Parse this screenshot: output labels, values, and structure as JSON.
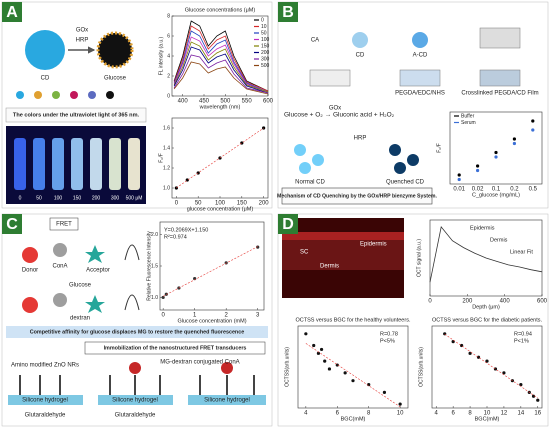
{
  "panels": {
    "A": {
      "label": "A",
      "caption": "The colors under the ultraviolet light of 365 nm.",
      "schematic": [
        "GOx",
        "HRP",
        "Glucose",
        "CD"
      ],
      "vials": [
        "0",
        "50",
        "100",
        "150",
        "200",
        "300",
        "500 μM"
      ]
    },
    "B": {
      "label": "B",
      "steps": [
        "CA",
        "CD",
        "A-CD",
        "PEGDA/EDC/NHS",
        "Crosslinked PEGDA/CD Film"
      ],
      "reaction": "Glucose + O₂ → Gluconic acid + H₂O₂",
      "enzyme1": "GOx",
      "enzyme2": "HRP",
      "normal": "Normal CD",
      "quenched": "Quenched CD",
      "caption": "Mechanism of CD Quenching by the GOx/HRP bienzyme System."
    },
    "C": {
      "label": "C",
      "fret": "FRET",
      "parts": [
        "Donor",
        "ConA",
        "Acceptor",
        "Glucose",
        "dextran"
      ],
      "band1": "Competitive affinity for glucose displaces MG to restore the quenched fluorescence",
      "band2": "Immobilization of the nanostructured FRET transducers",
      "bottom": [
        "Amino modified ZnO NRs",
        "Silicone hydrogel",
        "Silicone hydrogel",
        "Silicone hydrogel",
        "Glutaraldehyde",
        "MG-dextran conjugated ConA",
        "Glutaraldehyde"
      ]
    },
    "D": {
      "label": "D",
      "image": [
        "SC",
        "Epidermis",
        "Dermis"
      ]
    }
  },
  "chart_data": [
    {
      "type": "line",
      "title": "Glucose concentrations (μM)",
      "xlabel": "wavelength (nm)",
      "ylabel": "FL intensity (a.u.)",
      "x": [
        380,
        400,
        420,
        440,
        460,
        480,
        500,
        520,
        550,
        600
      ],
      "xlim": [
        375,
        600
      ],
      "xticks": [
        400,
        450,
        500,
        550,
        600
      ],
      "ylim": [
        0,
        8
      ],
      "yticks": [
        0,
        2,
        4,
        6,
        8
      ],
      "series": [
        {
          "name": "0",
          "color": "#000000",
          "values": [
            1.5,
            4,
            7.5,
            7,
            5,
            6,
            6.5,
            4,
            1.5,
            0.5
          ]
        },
        {
          "name": "10",
          "color": "#d62728",
          "values": [
            1.4,
            3.7,
            7.0,
            6.5,
            4.7,
            5.6,
            6.0,
            3.7,
            1.4,
            0.5
          ]
        },
        {
          "name": "50",
          "color": "#1f3fbf",
          "values": [
            1.3,
            3.4,
            6.5,
            6.0,
            4.3,
            5.2,
            5.6,
            3.4,
            1.3,
            0.4
          ]
        },
        {
          "name": "100",
          "color": "#c02bc0",
          "values": [
            1.2,
            3.2,
            5.9,
            5.5,
            4.0,
            4.7,
            5.1,
            3.2,
            1.2,
            0.4
          ]
        },
        {
          "name": "150",
          "color": "#808000",
          "values": [
            1.1,
            2.9,
            5.4,
            5.0,
            3.6,
            4.3,
            4.7,
            2.9,
            1.1,
            0.4
          ]
        },
        {
          "name": "200",
          "color": "#000080",
          "values": [
            1.0,
            2.6,
            4.9,
            4.6,
            3.3,
            3.9,
            4.2,
            2.6,
            1.0,
            0.3
          ]
        },
        {
          "name": "300",
          "color": "#7a1fa2",
          "values": [
            0.8,
            2.2,
            4.1,
            3.9,
            2.8,
            3.3,
            3.6,
            2.2,
            0.8,
            0.3
          ]
        },
        {
          "name": "500",
          "color": "#8b4513",
          "values": [
            0.7,
            1.8,
            3.4,
            3.2,
            2.3,
            2.7,
            2.9,
            1.8,
            0.7,
            0.2
          ]
        }
      ]
    },
    {
      "type": "scatter",
      "xlabel": "glucose concentration (μM)",
      "ylabel": "F₀/F",
      "fit": true,
      "x": [
        0,
        25,
        50,
        100,
        150,
        200
      ],
      "values": [
        1.0,
        1.08,
        1.15,
        1.3,
        1.45,
        1.6
      ],
      "color": "#000000",
      "xlim": [
        -10,
        210
      ],
      "xticks": [
        0,
        50,
        100,
        150,
        200
      ],
      "ylim": [
        0.9,
        1.7
      ],
      "yticks": [
        {
          "value": 1.0,
          "label": "1.0"
        },
        1.2,
        1.4,
        1.6
      ]
    },
    {
      "type": "scatter",
      "xlabel": "C_glucose (mg/mL)",
      "ylabel": "F₀/F",
      "categories": [
        "0.01",
        "0.02",
        "0.1",
        "0.2",
        "0.5"
      ],
      "ylim": [
        1,
        1.8
      ],
      "series": [
        {
          "name": "Buffer",
          "color": "#000000",
          "values": [
            1.1,
            1.2,
            1.35,
            1.5,
            1.7
          ]
        },
        {
          "name": "Serum",
          "color": "#3b6fd6",
          "values": [
            1.05,
            1.15,
            1.3,
            1.45,
            1.6
          ]
        }
      ]
    },
    {
      "type": "scatter",
      "xlabel": "Glucose concentration (mM)",
      "ylabel": "Relative Fluorescence Intensity",
      "fit": true,
      "annotations": [
        "Y=0.2069X+1.150",
        "R²=0.974"
      ],
      "x": [
        0,
        0.1,
        0.5,
        1,
        2,
        3
      ],
      "values": [
        1.0,
        1.05,
        1.15,
        1.3,
        1.55,
        1.8
      ],
      "color": "#333333",
      "xlim": [
        -0.1,
        3.2
      ],
      "xticks": [
        0,
        1,
        2,
        3
      ],
      "ylim": [
        0.8,
        2.2
      ],
      "yticks": [
        {
          "value": 1.0,
          "label": "1.0"
        },
        1.5,
        {
          "value": 2.0,
          "label": "2.0"
        }
      ]
    },
    {
      "type": "line",
      "xlabel": "Depth (μm)",
      "ylabel": "OCT signal (a.u.)",
      "annotations": [
        "Epidermis",
        "Dermis",
        "Linear Fit"
      ],
      "x": [
        0,
        60,
        120,
        180,
        240,
        300,
        360,
        420,
        480,
        540,
        600
      ],
      "values": [
        0.2,
        1.0,
        0.8,
        0.7,
        0.62,
        0.55,
        0.5,
        0.45,
        0.42,
        0.38,
        0.35
      ],
      "color": "#333333",
      "xlim": [
        0,
        600
      ],
      "xticks": [
        0,
        200,
        400,
        600
      ],
      "ylim": [
        0,
        1.1
      ]
    },
    {
      "type": "scatter",
      "title": "OCTSS versus BGC for the healthy volunteers.",
      "annotations": [
        "R=0.78",
        "P<5%"
      ],
      "xlabel": "BGC(mM)",
      "ylabel": "OCTSS(arb.units)",
      "fit": true,
      "x": [
        4,
        4.5,
        4.8,
        5,
        5.2,
        5.5,
        6,
        6.5,
        7,
        8,
        9,
        10
      ],
      "values": [
        0.95,
        0.8,
        0.7,
        0.75,
        0.6,
        0.5,
        0.55,
        0.45,
        0.35,
        0.3,
        0.2,
        0.05
      ],
      "color": "#111111",
      "xlim": [
        3.5,
        10.5
      ],
      "xticks": [
        4,
        6,
        8,
        10
      ],
      "ylim": [
        0,
        1.05
      ]
    },
    {
      "type": "scatter",
      "title": "OCTSS versus BGC for the diabetic patients.",
      "annotations": [
        "R=0.94",
        "P<1%"
      ],
      "xlabel": "BGC(mM)",
      "ylabel": "OCTSS(arb.units)",
      "fit": true,
      "x": [
        5,
        6,
        7,
        8,
        9,
        10,
        11,
        12,
        13,
        14,
        15,
        15.5,
        16
      ],
      "values": [
        0.95,
        0.85,
        0.8,
        0.7,
        0.65,
        0.6,
        0.5,
        0.45,
        0.35,
        0.3,
        0.2,
        0.15,
        0.1
      ],
      "color": "#111111",
      "xlim": [
        3.5,
        16.5
      ],
      "xticks": [
        4,
        6,
        8,
        10,
        12,
        14,
        16
      ],
      "ylim": [
        0,
        1.05
      ]
    }
  ]
}
